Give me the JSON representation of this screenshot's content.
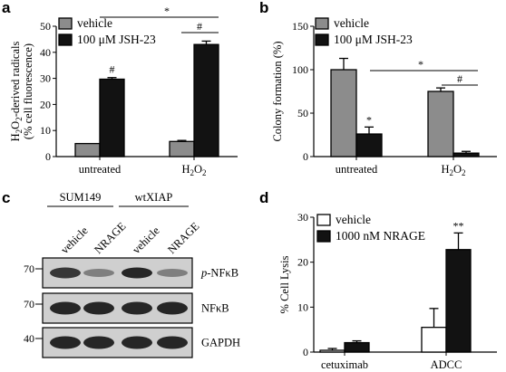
{
  "panel_labels": [
    "a",
    "b",
    "c",
    "d"
  ],
  "colors": {
    "vehicle_gray": "#8c8c8c",
    "treatment_black": "#121212",
    "white_bar": "#ffffff",
    "blot_bg": "#cfcfcf",
    "band": "#1c1c1c"
  },
  "chart_data": [
    {
      "panel": "a",
      "type": "bar",
      "categories": [
        "untreated",
        "H₂O₂"
      ],
      "ylabel": "H₂O₂-derived radicals (% cell fluorescence)",
      "ylabel_lines": [
        "H₂O₂-derived radicals",
        "(% cell fluorescence)"
      ],
      "ylim": [
        0,
        50
      ],
      "yticks": [
        0,
        10,
        20,
        30,
        40,
        50
      ],
      "legend_position": "top-left",
      "series": [
        {
          "name": "vehicle",
          "values": [
            5,
            5.8
          ],
          "errors": [
            0,
            0.4
          ]
        },
        {
          "name": "100 μM JSH-23",
          "values": [
            29.7,
            43
          ],
          "errors": [
            0.6,
            1.3
          ]
        }
      ],
      "annotations": [
        "#",
        "*",
        "#"
      ]
    },
    {
      "panel": "b",
      "type": "bar",
      "categories": [
        "untreated",
        "H₂O₂"
      ],
      "ylabel": "Colony formation (%)",
      "ylim": [
        0,
        150
      ],
      "yticks": [
        0,
        50,
        100,
        150
      ],
      "legend_position": "top-left",
      "series": [
        {
          "name": "vehicle",
          "values": [
            100,
            75
          ],
          "errors": [
            13,
            4
          ]
        },
        {
          "name": "100 μM JSH-23",
          "values": [
            26,
            4
          ],
          "errors": [
            8,
            2
          ]
        }
      ],
      "annotations": [
        "*",
        "*",
        "#"
      ]
    },
    {
      "panel": "d",
      "type": "bar",
      "categories": [
        "cetuximab",
        "ADCC"
      ],
      "ylabel": "% Cell Lysis",
      "ylim": [
        0,
        30
      ],
      "yticks": [
        0,
        10,
        20,
        30
      ],
      "legend_position": "top-left",
      "series": [
        {
          "name": "vehicle",
          "values": [
            0.4,
            5.5
          ],
          "errors": [
            0.4,
            4.2
          ]
        },
        {
          "name": "1000 nM NRAGE",
          "values": [
            2.1,
            22.8
          ],
          "errors": [
            0.4,
            3.7
          ]
        }
      ],
      "annotations": [
        "**"
      ]
    }
  ],
  "blot": {
    "groups": [
      "SUM149",
      "wtXIAP"
    ],
    "lanes": [
      "vehicle",
      "NRAGE",
      "vehicle",
      "NRAGE"
    ],
    "rows": [
      {
        "label": "p-NFκB",
        "label_italic": "p",
        "label_rest": "-NFκB",
        "marker": "70",
        "band_intensity": [
          0.85,
          0.45,
          0.95,
          0.45
        ]
      },
      {
        "label": "NFκB",
        "marker": "70",
        "band_intensity": [
          0.95,
          0.95,
          0.95,
          0.95
        ]
      },
      {
        "label": "GAPDH",
        "marker": "40",
        "band_intensity": [
          0.95,
          0.95,
          0.95,
          0.95
        ]
      }
    ]
  }
}
